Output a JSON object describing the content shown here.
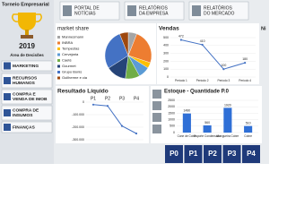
{
  "sidebar": {
    "title": "Torneio Empresarial",
    "year": "2019",
    "section": "Área de Decisões",
    "buttons": [
      [
        "MARKETING"
      ],
      [
        "RECURSOS",
        "HUMANOS"
      ],
      [
        "COMPRA E",
        "VENDA DE IMOB"
      ],
      [
        "COMPRA DE",
        "INSUMOS"
      ],
      [
        "FINANÇAS"
      ]
    ]
  },
  "nav": [
    [
      "PORTAL DE",
      "NOTÍCIAS"
    ],
    [
      "RELATÓRIOS",
      "DA EMPRESA"
    ],
    [
      "RELATÓRIOS",
      "DO MERCADO"
    ]
  ],
  "partial_title": "Ni",
  "period_buttons": [
    "P0",
    "P1",
    "P2",
    "P3",
    "P4"
  ],
  "chart_data": [
    {
      "type": "pie",
      "title": "market share",
      "categories": [
        "Mannesmann",
        "INBRA",
        "Tempestas",
        "Cervejaria",
        "Caeté",
        "Gourmet",
        "Grupo Bonis",
        "Guilherme e cia"
      ],
      "values": [
        6,
        24,
        4,
        8,
        10,
        14,
        28,
        6
      ],
      "colors": [
        "#a5a5a5",
        "#ed7d31",
        "#ffc000",
        "#5b9bd5",
        "#70ad47",
        "#264478",
        "#4472c4",
        "#9e480e"
      ]
    },
    {
      "type": "line",
      "title": "Vendas",
      "color": "#4472c4",
      "categories": [
        "Período 1",
        "Período 2",
        "Período 3",
        "Período 4"
      ],
      "values": [
        472,
        410,
        100,
        180
      ],
      "ylim": [
        0,
        500
      ],
      "yticks": [
        0,
        100,
        200,
        300,
        400,
        500
      ]
    },
    {
      "type": "line",
      "title": "Resultado Líquido",
      "color": "#4472c4",
      "x_axis": "top",
      "categories": [
        "P1",
        "P2",
        "P3",
        "P4"
      ],
      "values": [
        -20000,
        -30000,
        -190000,
        -250000
      ],
      "ylim": [
        -300000,
        0
      ],
      "yticks": [
        {
          "value": -300000,
          "label": "-300.000"
        },
        {
          "value": -200000,
          "label": "-200.000"
        },
        {
          "value": -100000,
          "label": "-100.000"
        },
        0
      ]
    },
    {
      "type": "bar",
      "title": "Estoque - Quantidade P.0",
      "color": "#2f6fd6",
      "categories": [
        "Cone de Cobre",
        "Esporte Condensado",
        "Mangueira Cobre",
        "Cobre"
      ],
      "values": [
        1480,
        560,
        1920,
        510
      ],
      "ylim": [
        0,
        2500
      ],
      "yticks": [
        0,
        500,
        1000,
        1500,
        2000,
        2500
      ]
    }
  ]
}
